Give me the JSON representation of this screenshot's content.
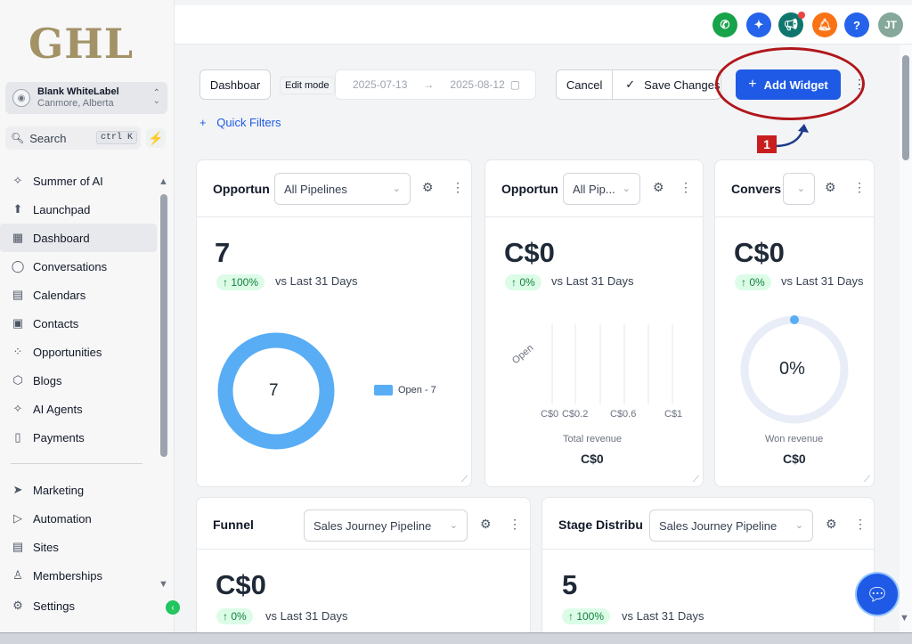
{
  "brand": {
    "logo": "GHL"
  },
  "account": {
    "name": "Blank WhiteLabel",
    "location": "Canmore, Alberta"
  },
  "search": {
    "label": "Search",
    "shortcut": "ctrl K"
  },
  "nav": {
    "primary": [
      {
        "label": "Summer of AI",
        "icon": "sparkles-icon"
      },
      {
        "label": "Launchpad",
        "icon": "rocket-icon"
      },
      {
        "label": "Dashboard",
        "icon": "grid-icon",
        "active": true
      },
      {
        "label": "Conversations",
        "icon": "chat-bubble-icon"
      },
      {
        "label": "Calendars",
        "icon": "calendar-icon"
      },
      {
        "label": "Contacts",
        "icon": "contacts-icon"
      },
      {
        "label": "Opportunities",
        "icon": "network-icon"
      },
      {
        "label": "Blogs",
        "icon": "cube-icon"
      },
      {
        "label": "AI Agents",
        "icon": "sparkles-icon"
      },
      {
        "label": "Payments",
        "icon": "receipt-icon"
      }
    ],
    "secondary": [
      {
        "label": "Marketing",
        "icon": "send-icon"
      },
      {
        "label": "Automation",
        "icon": "play-circle-icon"
      },
      {
        "label": "Sites",
        "icon": "browser-icon"
      },
      {
        "label": "Memberships",
        "icon": "badge-icon"
      },
      {
        "label": "Settings",
        "icon": "gear-icon"
      }
    ]
  },
  "topbar": {
    "avatar_initials": "JT",
    "colors": {
      "phone": "#16a34a",
      "ticket": "#2563eb",
      "megaphone": "#0f766e",
      "bell": "#f97316",
      "help": "#2563eb",
      "avatar": "#86a89a"
    }
  },
  "toolbar": {
    "dashboard_name": "Dashboar",
    "edit_mode": "Edit mode",
    "date_start": "2025-07-13",
    "date_end": "2025-08-12",
    "cancel": "Cancel",
    "save": "Save Changes",
    "add_widget": "Add Widget",
    "quick_filters": "Quick Filters"
  },
  "annotation": {
    "step": "1"
  },
  "cards": {
    "opp_count": {
      "title": "Opportun",
      "select": "All Pipelines",
      "value": "7",
      "change": "↑ 100%",
      "vs": "vs Last 31 Days",
      "donut_label": "7",
      "legend": "Open - 7"
    },
    "opp_value": {
      "title": "Opportun",
      "select": "All Pip...",
      "value": "C$0",
      "change": "↑ 0%",
      "vs": "vs Last 31 Days",
      "category": "Open",
      "ticks": [
        "C$0",
        "C$0.2",
        "C$0.6",
        "C$1"
      ],
      "xlabel": "Total revenue",
      "total": "C$0"
    },
    "conversion": {
      "title": "Convers",
      "value": "C$0",
      "change": "↑ 0%",
      "vs": "vs Last 31 Days",
      "gauge": "0%",
      "caption": "Won revenue",
      "total": "C$0"
    },
    "funnel": {
      "title": "Funnel",
      "select": "Sales Journey Pipeline",
      "value": "C$0",
      "change": "↑ 0%",
      "vs": "vs Last 31 Days"
    },
    "stage": {
      "title": "Stage Distribu",
      "select": "Sales Journey Pipeline",
      "value": "5",
      "change": "↑ 100%",
      "vs": "vs Last 31 Days"
    }
  }
}
